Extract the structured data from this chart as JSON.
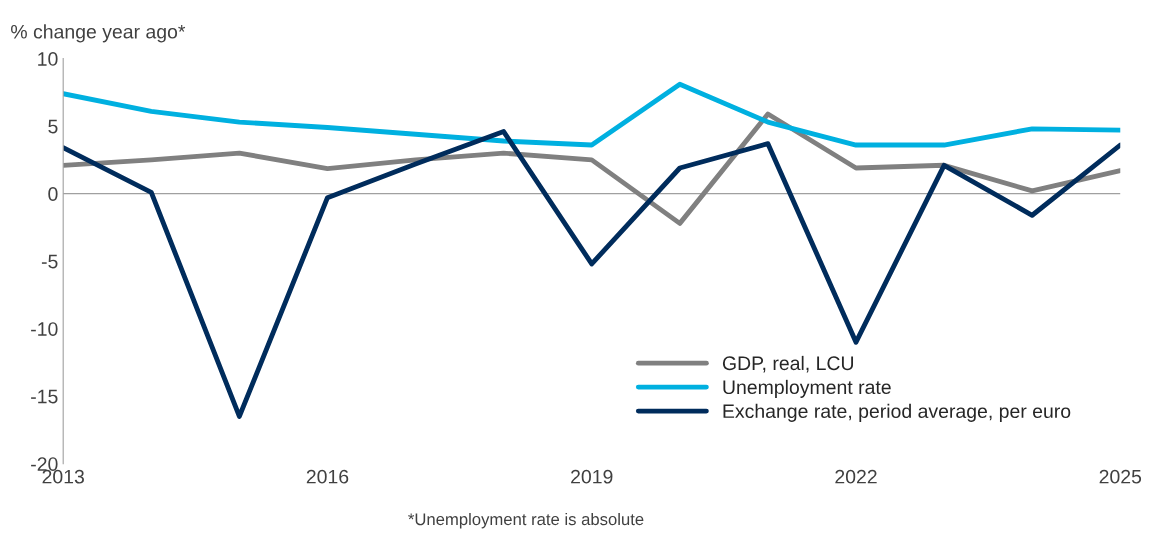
{
  "chart_data": {
    "type": "line",
    "ylabel": "% change year ago*",
    "x": [
      2013,
      2014,
      2015,
      2016,
      2017,
      2018,
      2019,
      2020,
      2021,
      2022,
      2023,
      2024,
      2025
    ],
    "series": [
      {
        "name": "GDP, real, LCU",
        "color": "#808080",
        "values": [
          2.1,
          2.5,
          3.0,
          1.85,
          2.5,
          3.0,
          2.5,
          -2.2,
          5.9,
          1.9,
          2.1,
          0.2,
          1.7
        ]
      },
      {
        "name": "Unemployment rate",
        "color": "#00b0e0",
        "values": [
          7.4,
          6.1,
          5.3,
          4.9,
          4.4,
          3.9,
          3.6,
          8.1,
          5.3,
          3.6,
          3.6,
          4.8,
          4.7
        ]
      },
      {
        "name": "Exchange rate, period average, per euro",
        "color": "#002c5c",
        "values": [
          3.4,
          0.1,
          -16.5,
          -0.3,
          2.2,
          4.6,
          -5.2,
          1.9,
          3.7,
          -11.0,
          2.1,
          -1.6,
          3.6
        ]
      }
    ],
    "xlim": [
      2013,
      2025
    ],
    "xticks": [
      2013,
      2016,
      2019,
      2022,
      2025
    ],
    "ylim": [
      -20,
      10
    ],
    "yticks": [
      -20,
      -15,
      -10,
      -5,
      0,
      5,
      10
    ],
    "grid": false,
    "ref_lines": [
      {
        "axis": "y",
        "value": 0,
        "color": "#a0a0a0"
      }
    ],
    "legend": "bottom right",
    "marker": "none",
    "line_style": "solid",
    "annotations": [
      "*Unemployment rate is absolute"
    ]
  }
}
